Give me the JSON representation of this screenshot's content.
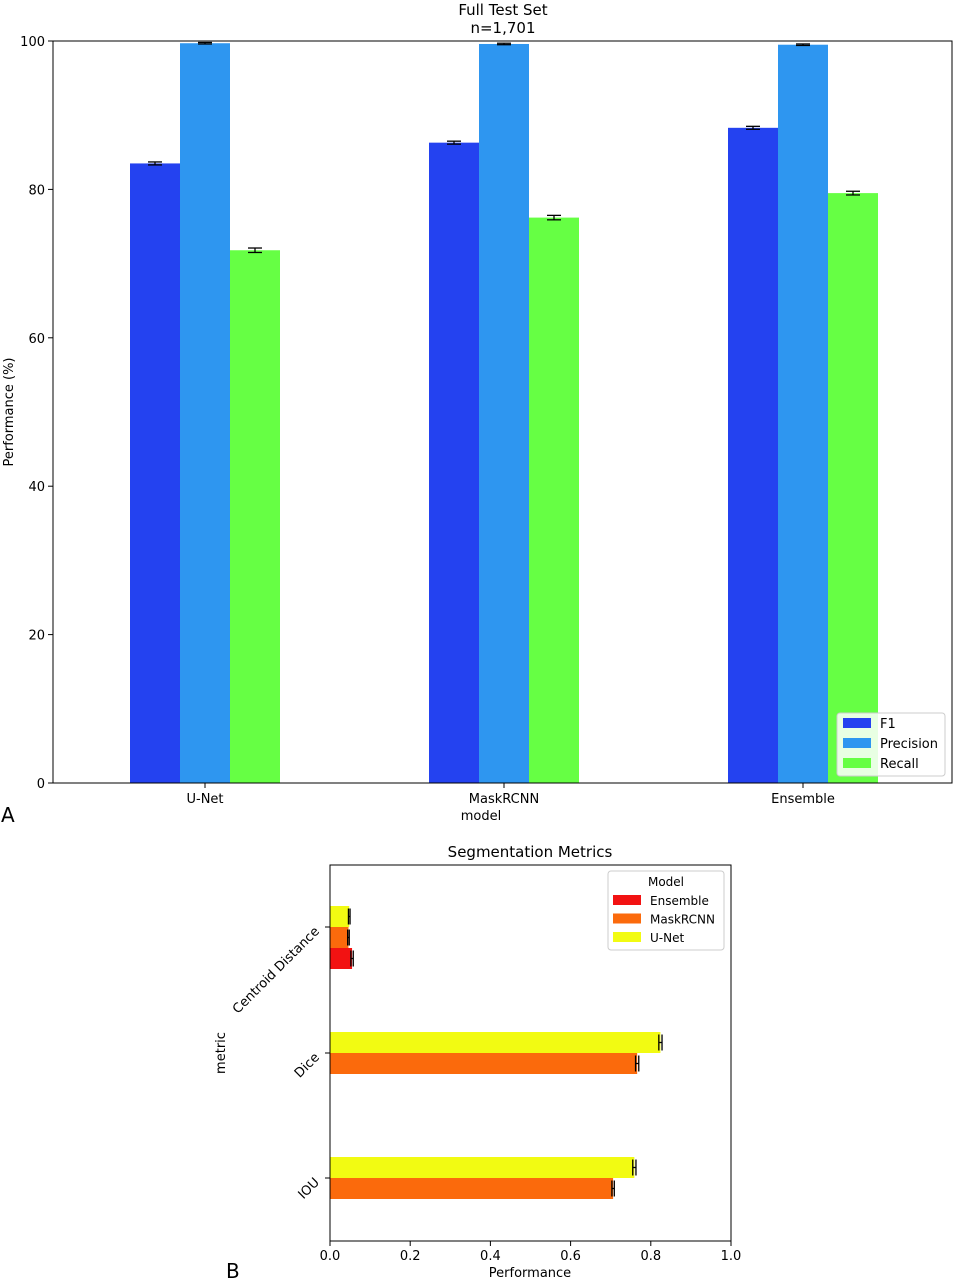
{
  "panel_labels": {
    "a": "A",
    "b": "B"
  },
  "colors": {
    "f1": "#2442f0",
    "precision": "#2e96f0",
    "recall": "#66ff44",
    "ensemble": "#f21212",
    "maskrcnn": "#fb6a0c",
    "unet": "#f2fb12"
  },
  "chart_data": [
    {
      "type": "bar",
      "title": "Full Test Set",
      "subtitle": "n=1,701",
      "xlabel": "model",
      "ylabel": "Performance (%)",
      "categories": [
        "U-Net",
        "MaskRCNN",
        "Ensemble"
      ],
      "ylim": [
        0,
        100
      ],
      "yticks": [
        "0",
        "20",
        "40",
        "60",
        "80",
        "100"
      ],
      "series": [
        {
          "name": "F1",
          "values": [
            83.5,
            86.3,
            88.3
          ],
          "errors": [
            0.2,
            0.2,
            0.2
          ]
        },
        {
          "name": "Precision",
          "values": [
            99.7,
            99.6,
            99.5
          ],
          "errors": [
            0.1,
            0.1,
            0.1
          ]
        },
        {
          "name": "Recall",
          "values": [
            71.8,
            76.2,
            79.5
          ],
          "errors": [
            0.3,
            0.3,
            0.25
          ]
        }
      ],
      "legend": {
        "placement": "lower-right"
      },
      "grid": false
    },
    {
      "type": "bar",
      "orientation": "horizontal",
      "title": "Segmentation Metrics",
      "xlabel": "Performance",
      "ylabel": "metric",
      "categories": [
        "Centroid Distance",
        "Dice",
        "IOU"
      ],
      "xlim": [
        0,
        1
      ],
      "xticks": [
        "0.0",
        "0.2",
        "0.4",
        "0.6",
        "0.8",
        "1.0"
      ],
      "legend": {
        "title": "Model",
        "placement": "top-right"
      },
      "series": [
        {
          "name": "Ensemble",
          "values": [
            0.055,
            null,
            null
          ],
          "errors": [
            0.003,
            null,
            null
          ]
        },
        {
          "name": "MaskRCNN",
          "values": [
            0.046,
            0.766,
            0.706
          ],
          "errors": [
            0.002,
            0.004,
            0.003
          ]
        },
        {
          "name": "U-Net",
          "values": [
            0.048,
            0.824,
            0.759
          ],
          "errors": [
            0.002,
            0.004,
            0.004
          ]
        }
      ],
      "grid": false
    }
  ]
}
